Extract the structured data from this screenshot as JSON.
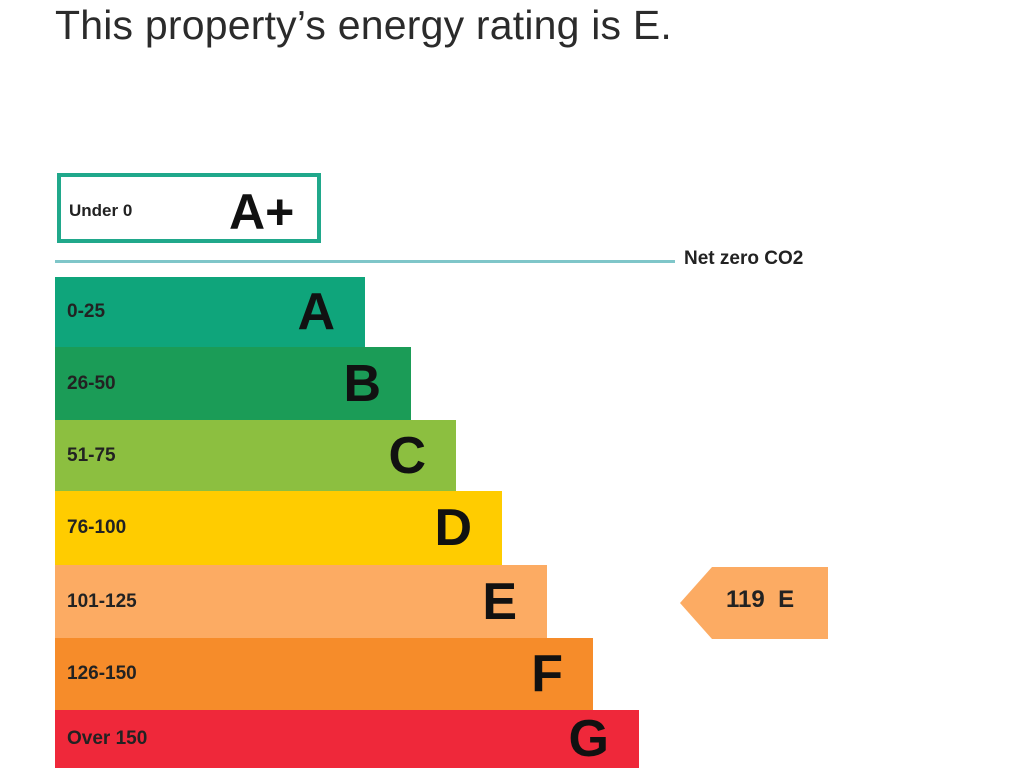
{
  "headline": "This property’s energy rating is E.",
  "net_zero_label": "Net zero CO2",
  "chart_data": {
    "type": "bar",
    "bands": [
      {
        "letter": "A+",
        "range": "Under 0",
        "color": "#ffffff",
        "border_color": "#20a88b"
      },
      {
        "letter": "A",
        "range": "0-25",
        "color": "#0fa57b"
      },
      {
        "letter": "B",
        "range": "26-50",
        "color": "#1b9c57"
      },
      {
        "letter": "C",
        "range": "51-75",
        "color": "#8cbf40"
      },
      {
        "letter": "D",
        "range": "76-100",
        "color": "#ffcc00"
      },
      {
        "letter": "E",
        "range": "101-125",
        "color": "#fcab63"
      },
      {
        "letter": "F",
        "range": "126-150",
        "color": "#f68c2a"
      },
      {
        "letter": "G",
        "range": "Over 150",
        "color": "#ef283a"
      }
    ],
    "current": {
      "value": 119,
      "rating": "E",
      "color": "#fcab63"
    }
  }
}
